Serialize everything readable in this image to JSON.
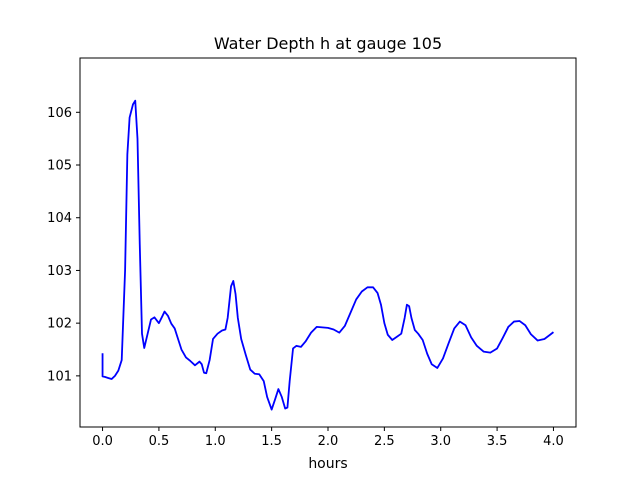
{
  "chart_data": {
    "type": "line",
    "title": "Water Depth h at gauge 105",
    "xlabel": "hours",
    "ylabel": "",
    "xlim": [
      -0.2,
      4.2
    ],
    "ylim": [
      100.03,
      107.03
    ],
    "grid": false,
    "xticks": [
      0.0,
      0.5,
      1.0,
      1.5,
      2.0,
      2.5,
      3.0,
      3.5,
      4.0
    ],
    "xtick_labels": [
      "0.0",
      "0.5",
      "1.0",
      "1.5",
      "2.0",
      "2.5",
      "3.0",
      "3.5",
      "4.0"
    ],
    "yticks": [
      101,
      102,
      103,
      104,
      105,
      106
    ],
    "ytick_labels": [
      "101",
      "102",
      "103",
      "104",
      "105",
      "106"
    ],
    "series": [
      {
        "color": "#0000ff",
        "x": [
          0.0,
          0.0,
          0.02,
          0.05,
          0.08,
          0.11,
          0.14,
          0.17,
          0.2,
          0.22,
          0.24,
          0.27,
          0.29,
          0.31,
          0.33,
          0.35,
          0.37,
          0.4,
          0.43,
          0.46,
          0.5,
          0.53,
          0.55,
          0.58,
          0.61,
          0.64,
          0.67,
          0.7,
          0.74,
          0.78,
          0.82,
          0.86,
          0.88,
          0.9,
          0.92,
          0.95,
          0.98,
          1.02,
          1.06,
          1.09,
          1.11,
          1.14,
          1.16,
          1.18,
          1.2,
          1.23,
          1.27,
          1.31,
          1.35,
          1.39,
          1.43,
          1.46,
          1.5,
          1.53,
          1.56,
          1.59,
          1.62,
          1.64,
          1.66,
          1.69,
          1.72,
          1.76,
          1.8,
          1.85,
          1.9,
          1.95,
          2.0,
          2.05,
          2.1,
          2.15,
          2.2,
          2.25,
          2.3,
          2.35,
          2.4,
          2.44,
          2.47,
          2.5,
          2.53,
          2.57,
          2.61,
          2.65,
          2.68,
          2.7,
          2.72,
          2.74,
          2.77,
          2.8,
          2.84,
          2.88,
          2.92,
          2.97,
          3.02,
          3.07,
          3.12,
          3.17,
          3.22,
          3.27,
          3.32,
          3.38,
          3.44,
          3.5,
          3.55,
          3.6,
          3.65,
          3.7,
          3.75,
          3.8,
          3.86,
          3.92,
          3.97,
          4.0
        ],
        "y": [
          101.43,
          100.99,
          100.98,
          100.96,
          100.94,
          101.0,
          101.1,
          101.3,
          103.0,
          105.2,
          105.9,
          106.15,
          106.22,
          105.5,
          103.5,
          101.8,
          101.53,
          101.8,
          102.07,
          102.11,
          102.0,
          102.13,
          102.22,
          102.14,
          101.99,
          101.9,
          101.7,
          101.5,
          101.35,
          101.28,
          101.2,
          101.27,
          101.22,
          101.06,
          101.05,
          101.3,
          101.7,
          101.8,
          101.86,
          101.88,
          102.1,
          102.7,
          102.8,
          102.55,
          102.1,
          101.7,
          101.4,
          101.12,
          101.04,
          101.03,
          100.9,
          100.6,
          100.36,
          100.55,
          100.75,
          100.6,
          100.38,
          100.4,
          100.9,
          101.52,
          101.57,
          101.55,
          101.65,
          101.82,
          101.93,
          101.92,
          101.91,
          101.88,
          101.82,
          101.95,
          102.2,
          102.45,
          102.6,
          102.68,
          102.68,
          102.57,
          102.35,
          102.0,
          101.78,
          101.68,
          101.74,
          101.8,
          102.1,
          102.35,
          102.32,
          102.1,
          101.87,
          101.8,
          101.68,
          101.42,
          101.22,
          101.15,
          101.33,
          101.62,
          101.9,
          102.03,
          101.96,
          101.73,
          101.57,
          101.46,
          101.44,
          101.52,
          101.72,
          101.93,
          102.03,
          102.04,
          101.96,
          101.79,
          101.67,
          101.7,
          101.78,
          101.83
        ]
      }
    ]
  }
}
